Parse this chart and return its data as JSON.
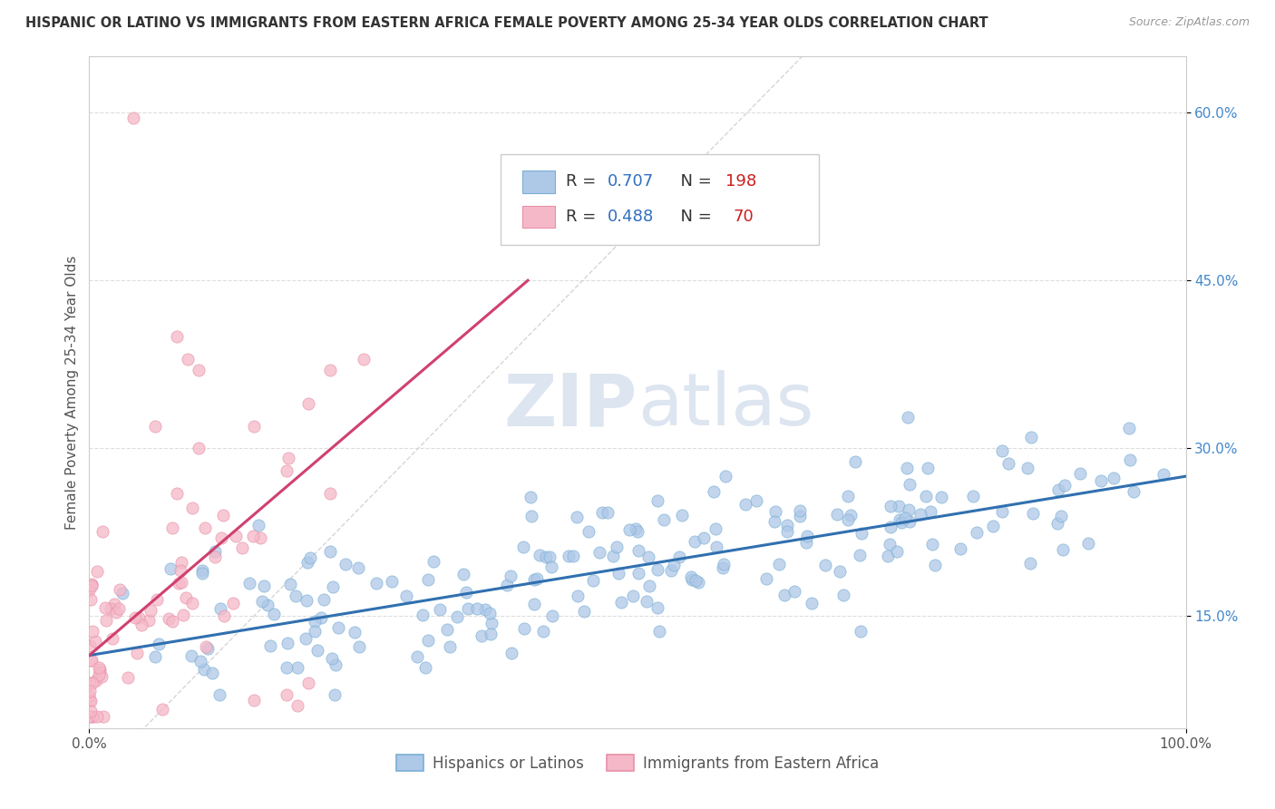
{
  "title": "HISPANIC OR LATINO VS IMMIGRANTS FROM EASTERN AFRICA FEMALE POVERTY AMONG 25-34 YEAR OLDS CORRELATION CHART",
  "source": "Source: ZipAtlas.com",
  "ylabel": "Female Poverty Among 25-34 Year Olds",
  "xlim": [
    0,
    1.0
  ],
  "ylim": [
    0.05,
    0.65
  ],
  "blue_R": 0.707,
  "blue_N": 198,
  "pink_R": 0.488,
  "pink_N": 70,
  "blue_scatter_color": "#aec8e8",
  "pink_scatter_color": "#f5b8c8",
  "blue_edge_color": "#7aafd4",
  "pink_edge_color": "#e890a8",
  "blue_line_color": "#3070b0",
  "pink_line_color": "#d04070",
  "watermark_zip": "ZIP",
  "watermark_atlas": "atlas",
  "watermark_color": "#dde5f0",
  "diagonal_color": "#cccccc",
  "grid_color": "#dddddd",
  "background_color": "#ffffff",
  "legend_R_color": "#3070c0",
  "legend_N_color": "#cc2020",
  "blue_line_x0": 0.0,
  "blue_line_y0": 0.115,
  "blue_line_x1": 1.0,
  "blue_line_y1": 0.275,
  "pink_line_x0": 0.0,
  "pink_line_y0": 0.115,
  "pink_line_x1": 0.4,
  "pink_line_y1": 0.45,
  "figsize": [
    14.06,
    8.92
  ],
  "dpi": 100
}
